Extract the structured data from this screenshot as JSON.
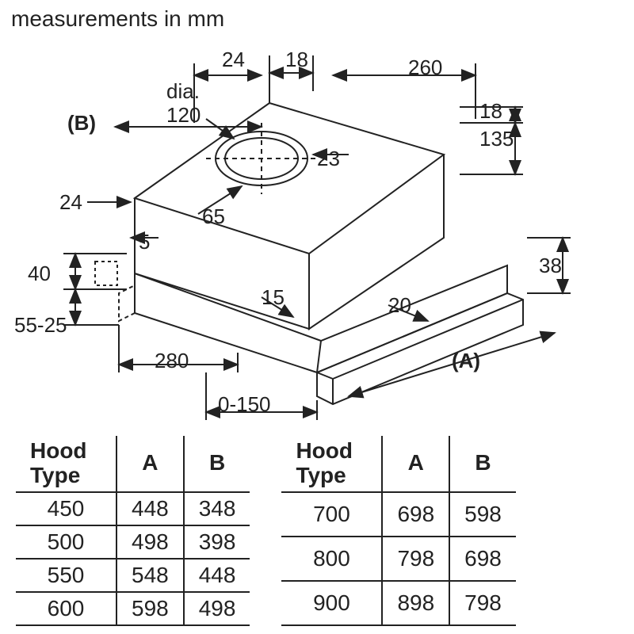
{
  "title": "measurements in mm",
  "labels": {
    "dia": "dia.",
    "A": "(A)",
    "B": "(B)"
  },
  "dims": {
    "d24a": "24",
    "d18a": "18",
    "d260": "260",
    "d120": "120",
    "d18b": "18",
    "d135": "135",
    "d23": "23",
    "d24b": "24",
    "d65": "65",
    "d5": "5",
    "d40": "40",
    "d55_25": "55-25",
    "d15": "15",
    "d20": "20",
    "d38": "38",
    "d280": "280",
    "d0_150": "0-150"
  },
  "table_headers": [
    "Hood\nType",
    "A",
    "B"
  ],
  "table_left": [
    [
      "450",
      "448",
      "348"
    ],
    [
      "500",
      "498",
      "398"
    ],
    [
      "550",
      "548",
      "448"
    ],
    [
      "600",
      "598",
      "498"
    ]
  ],
  "table_right": [
    [
      "700",
      "698",
      "598"
    ],
    [
      "800",
      "798",
      "698"
    ],
    [
      "900",
      "898",
      "798"
    ]
  ],
  "style": {
    "stroke": "#222",
    "stroke_width": 2,
    "font_size": 26,
    "title_font_size": 28,
    "table_font_size": 28
  }
}
